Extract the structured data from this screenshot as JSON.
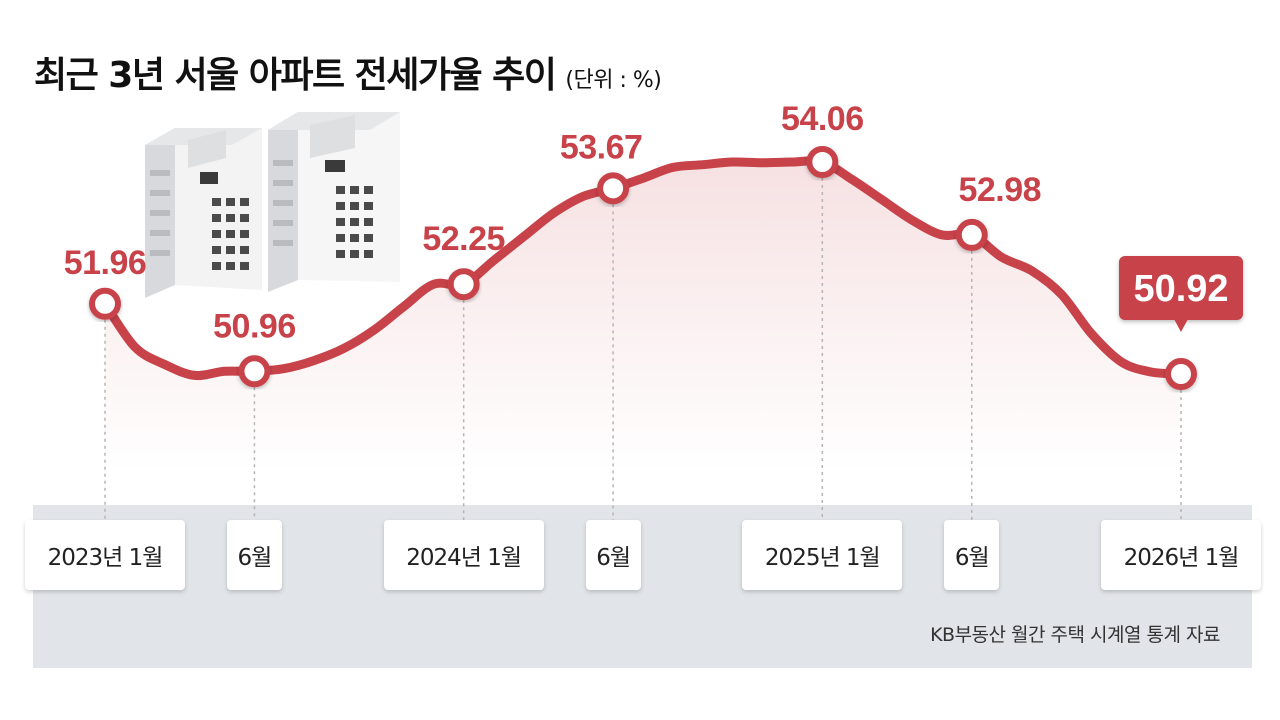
{
  "header": {
    "title": "최근 3년 서울 아파트 전세가율 추이",
    "unit": "(단위 : %)"
  },
  "source": "KB부동산 월간 주택 시계열 통계 자료",
  "colors": {
    "line": "#c8424a",
    "label": "#c8424a",
    "callout_bg": "#c8424a",
    "axis_band": "#e1e4e8"
  },
  "illustration": "apartment-buildings",
  "chart_data": {
    "type": "line",
    "title": "최근 3년 서울 아파트 전세가율 추이",
    "unit": "%",
    "x": [
      "2023-01",
      "2023-02",
      "2023-03",
      "2023-04",
      "2023-05",
      "2023-06",
      "2023-07",
      "2023-08",
      "2023-09",
      "2023-10",
      "2023-11",
      "2023-12",
      "2024-01",
      "2024-02",
      "2024-03",
      "2024-04",
      "2024-05",
      "2024-06",
      "2024-07",
      "2024-08",
      "2024-09",
      "2024-10",
      "2024-11",
      "2024-12",
      "2025-01",
      "2025-02",
      "2025-03",
      "2025-04",
      "2025-05",
      "2025-06",
      "2025-07",
      "2025-08",
      "2025-09",
      "2025-10",
      "2025-11",
      "2025-12",
      "2026-01"
    ],
    "values": [
      51.96,
      51.32,
      51.06,
      50.9,
      50.96,
      50.96,
      51.0,
      51.12,
      51.3,
      51.57,
      51.92,
      52.25,
      52.25,
      52.6,
      52.95,
      53.3,
      53.55,
      53.67,
      53.82,
      53.98,
      54.02,
      54.06,
      54.05,
      54.06,
      54.06,
      53.8,
      53.5,
      53.2,
      52.98,
      52.98,
      52.65,
      52.45,
      52.1,
      51.52,
      51.1,
      50.95,
      50.92
    ],
    "labeled_points": [
      {
        "x": "2023-01",
        "value": "51.96"
      },
      {
        "x": "2023-06",
        "value": "50.96"
      },
      {
        "x": "2024-01",
        "value": "52.25"
      },
      {
        "x": "2024-06",
        "value": "53.67"
      },
      {
        "x": "2025-01",
        "value": "54.06"
      },
      {
        "x": "2025-06",
        "value": "52.98"
      },
      {
        "x": "2026-01",
        "value": "50.92"
      }
    ],
    "tick_labels": [
      {
        "x": "2023-01",
        "label": "2023년 1월"
      },
      {
        "x": "2023-06",
        "label": "6월"
      },
      {
        "x": "2024-01",
        "label": "2024년 1월"
      },
      {
        "x": "2024-06",
        "label": "6월"
      },
      {
        "x": "2025-01",
        "label": "2025년 1월"
      },
      {
        "x": "2025-06",
        "label": "6월"
      },
      {
        "x": "2026-01",
        "label": "2026년 1월"
      }
    ],
    "xlabel": "",
    "ylabel": "",
    "grid": false,
    "legend": "none"
  }
}
